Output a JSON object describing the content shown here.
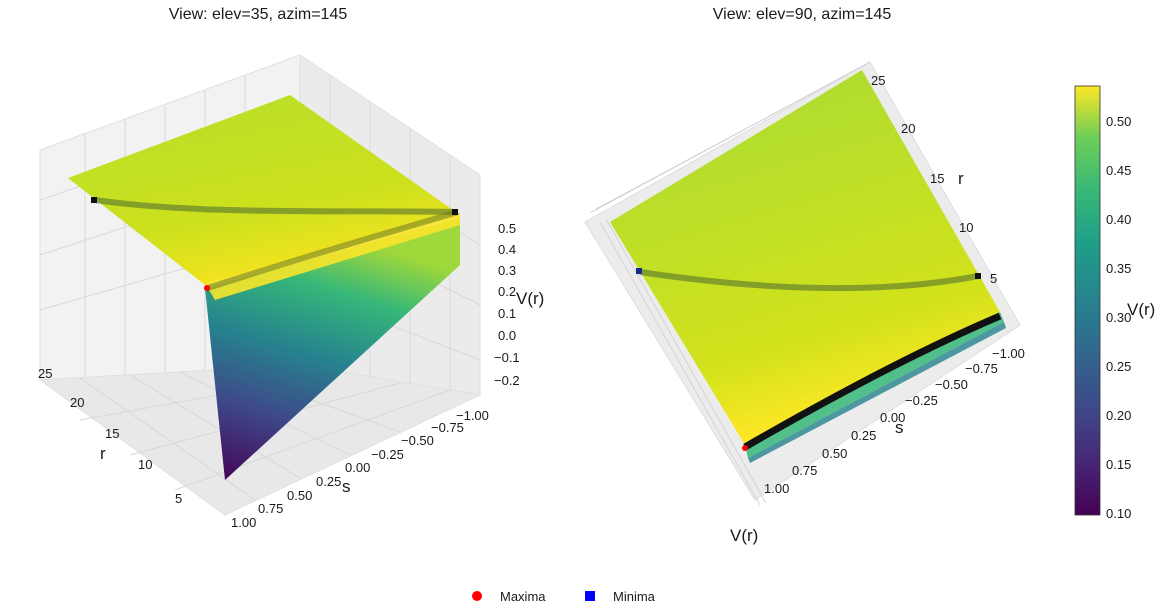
{
  "chart_data": [
    {
      "type": "surface3d",
      "title": "View: elev=35, azim=145",
      "xlabel": "s",
      "ylabel": "r",
      "zlabel": "V(r)",
      "x_ticks": [
        "−1.00",
        "−0.75",
        "−0.50",
        "−0.25",
        "0.00",
        "0.25",
        "0.50",
        "0.75",
        "1.00"
      ],
      "y_ticks": [
        "5",
        "10",
        "15",
        "20",
        "25"
      ],
      "z_ticks": [
        "−0.2",
        "−0.1",
        "0.0",
        "0.1",
        "0.2",
        "0.3",
        "0.4",
        "0.5"
      ],
      "xlim": [
        -1.0,
        1.0
      ],
      "ylim": [
        1,
        27
      ],
      "zlim": [
        -0.25,
        0.55
      ],
      "colormap": "viridis",
      "grid": true
    },
    {
      "type": "surface3d",
      "title": "View: elev=90, azim=145",
      "xlabel": "s",
      "ylabel": "r",
      "zlabel": "V(r)",
      "x_ticks": [
        "−1.00",
        "−0.75",
        "−0.50",
        "−0.25",
        "0.00",
        "0.25",
        "0.50",
        "0.75",
        "1.00"
      ],
      "y_ticks": [
        "5",
        "10",
        "15",
        "20",
        "25"
      ],
      "colormap": "viridis"
    }
  ],
  "colorbar": {
    "label": "V(r)",
    "ticks": [
      "0.10",
      "0.15",
      "0.20",
      "0.25",
      "0.30",
      "0.35",
      "0.40",
      "0.45",
      "0.50"
    ],
    "range": [
      0.097,
      0.535
    ]
  },
  "legend": {
    "placement": "bottom-center",
    "items": [
      {
        "label": "Maxima",
        "marker": "circle",
        "color": "#ff0000"
      },
      {
        "label": "Minima",
        "marker": "square",
        "color": "#0000ff"
      }
    ]
  }
}
